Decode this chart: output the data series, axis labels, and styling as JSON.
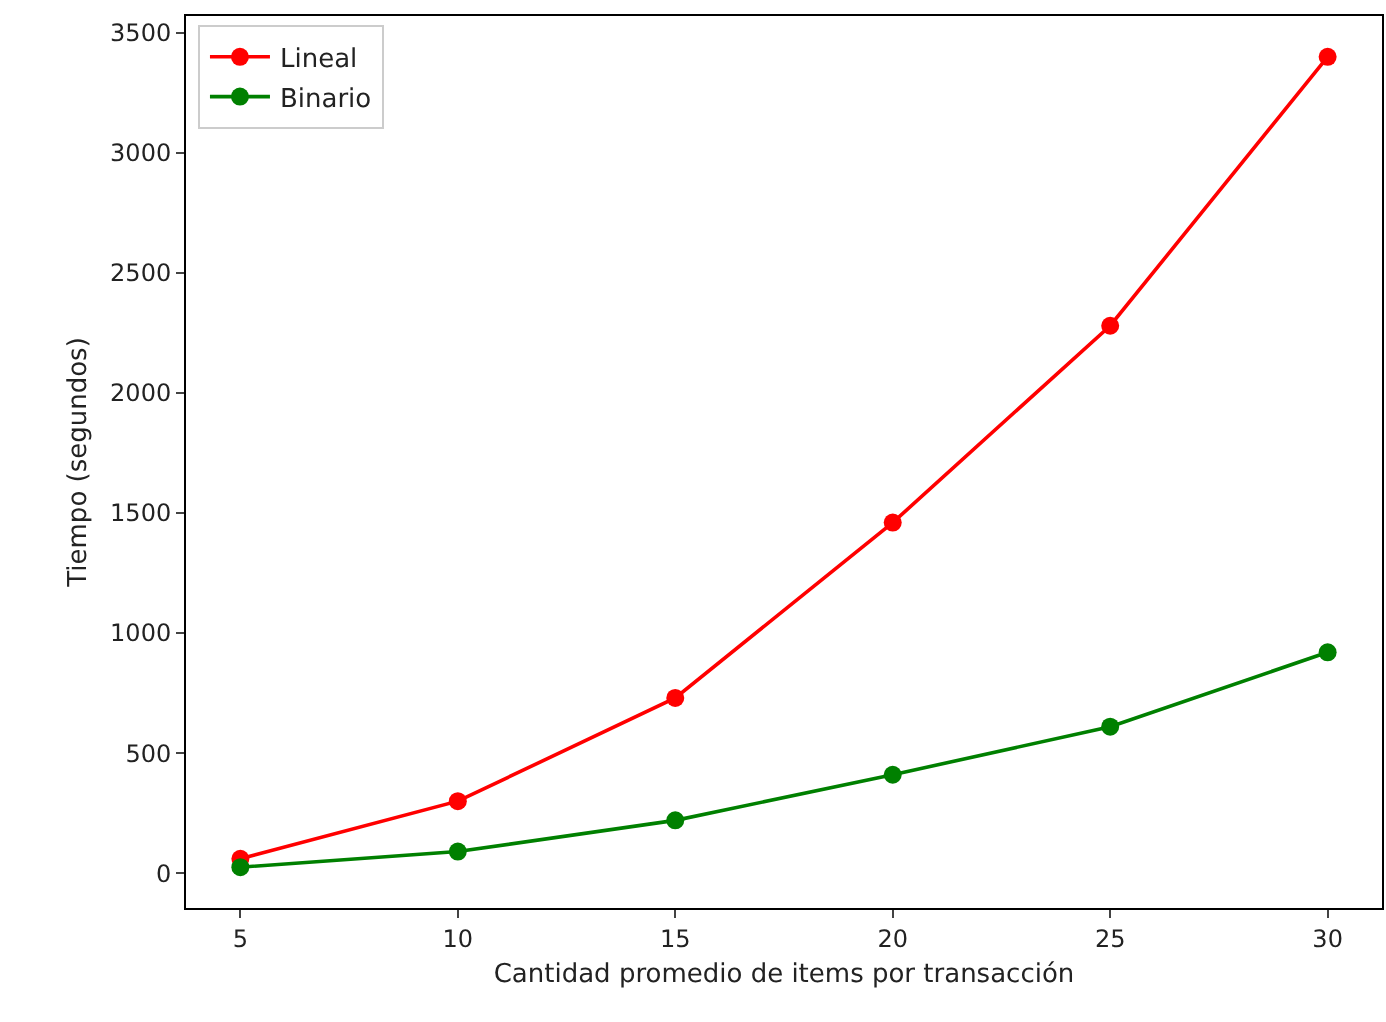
{
  "chart_data": {
    "type": "line",
    "xlabel": "Cantidad promedio de items por transacción",
    "ylabel": "Tiempo (segundos)",
    "x": [
      5,
      10,
      15,
      20,
      25,
      30
    ],
    "series": [
      {
        "name": "Lineal",
        "color": "#ff0000",
        "values": [
          60,
          300,
          730,
          1460,
          2280,
          3400
        ]
      },
      {
        "name": "Binario",
        "color": "#008000",
        "values": [
          25,
          90,
          220,
          410,
          610,
          920
        ]
      }
    ],
    "xlim": [
      3.75,
      31.25
    ],
    "xticks": [
      5,
      10,
      15,
      20,
      25,
      30
    ],
    "ylim": [
      -145,
      3570
    ],
    "yticks": [
      0,
      500,
      1000,
      1500,
      2000,
      2500,
      3000,
      3500
    ],
    "grid": false,
    "legend": "top left",
    "marker": "circle",
    "line_style": "solid"
  }
}
